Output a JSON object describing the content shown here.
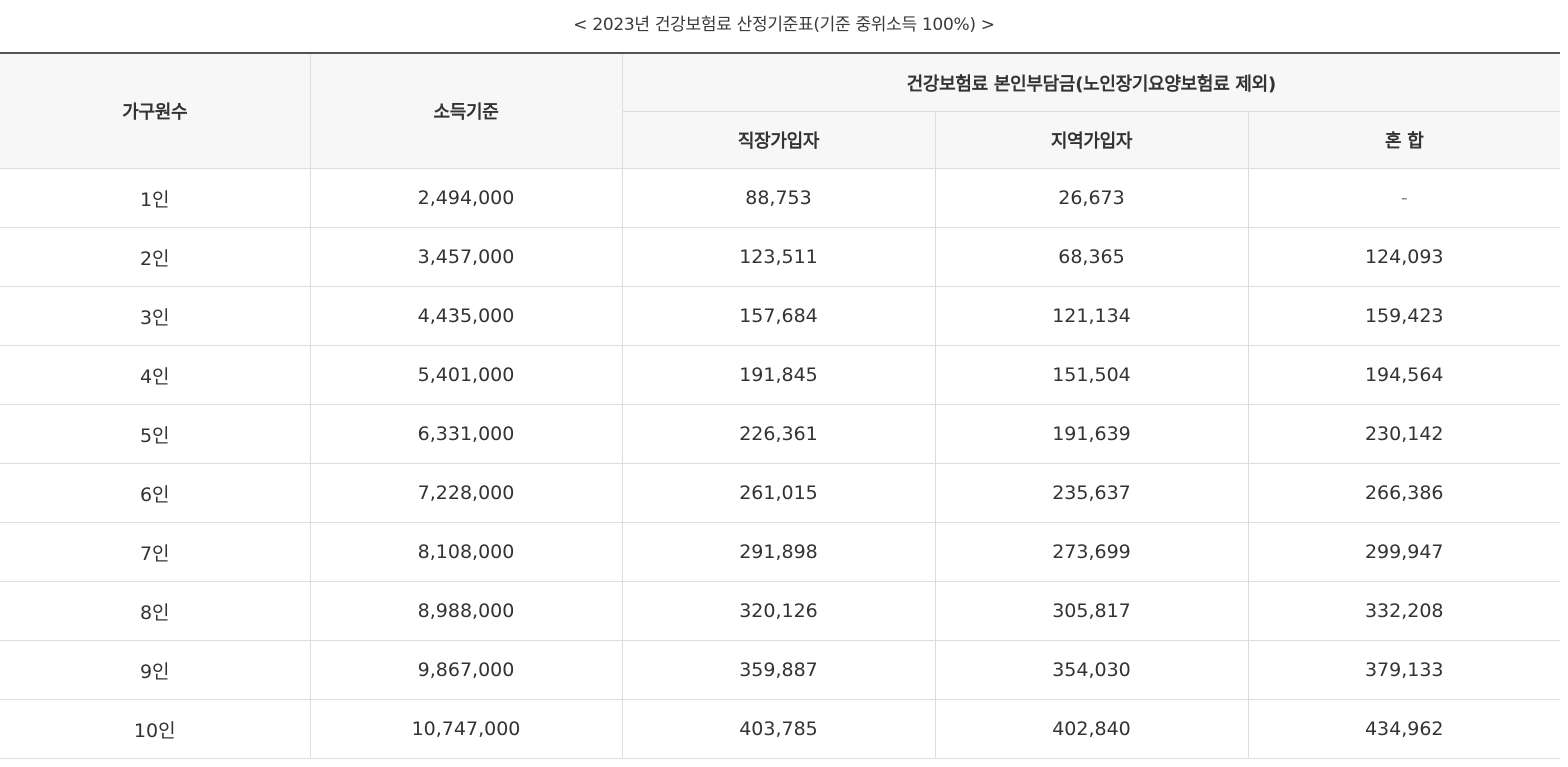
{
  "caption": "< 2023년 건강보험료 산정기준표(기준 중위소득 100%) >",
  "table": {
    "headers": {
      "household": "가구원수",
      "income": "소득기준",
      "premium_group": "건강보험료 본인부담금(노인장기요양보험료 제외)",
      "employee": "직장가입자",
      "regional": "지역가입자",
      "mixed": "혼 합"
    },
    "rows": [
      {
        "household": "1인",
        "income": "2,494,000",
        "employee": "88,753",
        "regional": "26,673",
        "mixed": "-"
      },
      {
        "household": "2인",
        "income": "3,457,000",
        "employee": "123,511",
        "regional": "68,365",
        "mixed": "124,093"
      },
      {
        "household": "3인",
        "income": "4,435,000",
        "employee": "157,684",
        "regional": "121,134",
        "mixed": "159,423"
      },
      {
        "household": "4인",
        "income": "5,401,000",
        "employee": "191,845",
        "regional": "151,504",
        "mixed": "194,564"
      },
      {
        "household": "5인",
        "income": "6,331,000",
        "employee": "226,361",
        "regional": "191,639",
        "mixed": "230,142"
      },
      {
        "household": "6인",
        "income": "7,228,000",
        "employee": "261,015",
        "regional": "235,637",
        "mixed": "266,386"
      },
      {
        "household": "7인",
        "income": "8,108,000",
        "employee": "291,898",
        "regional": "273,699",
        "mixed": "299,947"
      },
      {
        "household": "8인",
        "income": "8,988,000",
        "employee": "320,126",
        "regional": "305,817",
        "mixed": "332,208"
      },
      {
        "household": "9인",
        "income": "9,867,000",
        "employee": "359,887",
        "regional": "354,030",
        "mixed": "379,133"
      },
      {
        "household": "10인",
        "income": "10,747,000",
        "employee": "403,785",
        "regional": "402,840",
        "mixed": "434,962"
      }
    ]
  }
}
